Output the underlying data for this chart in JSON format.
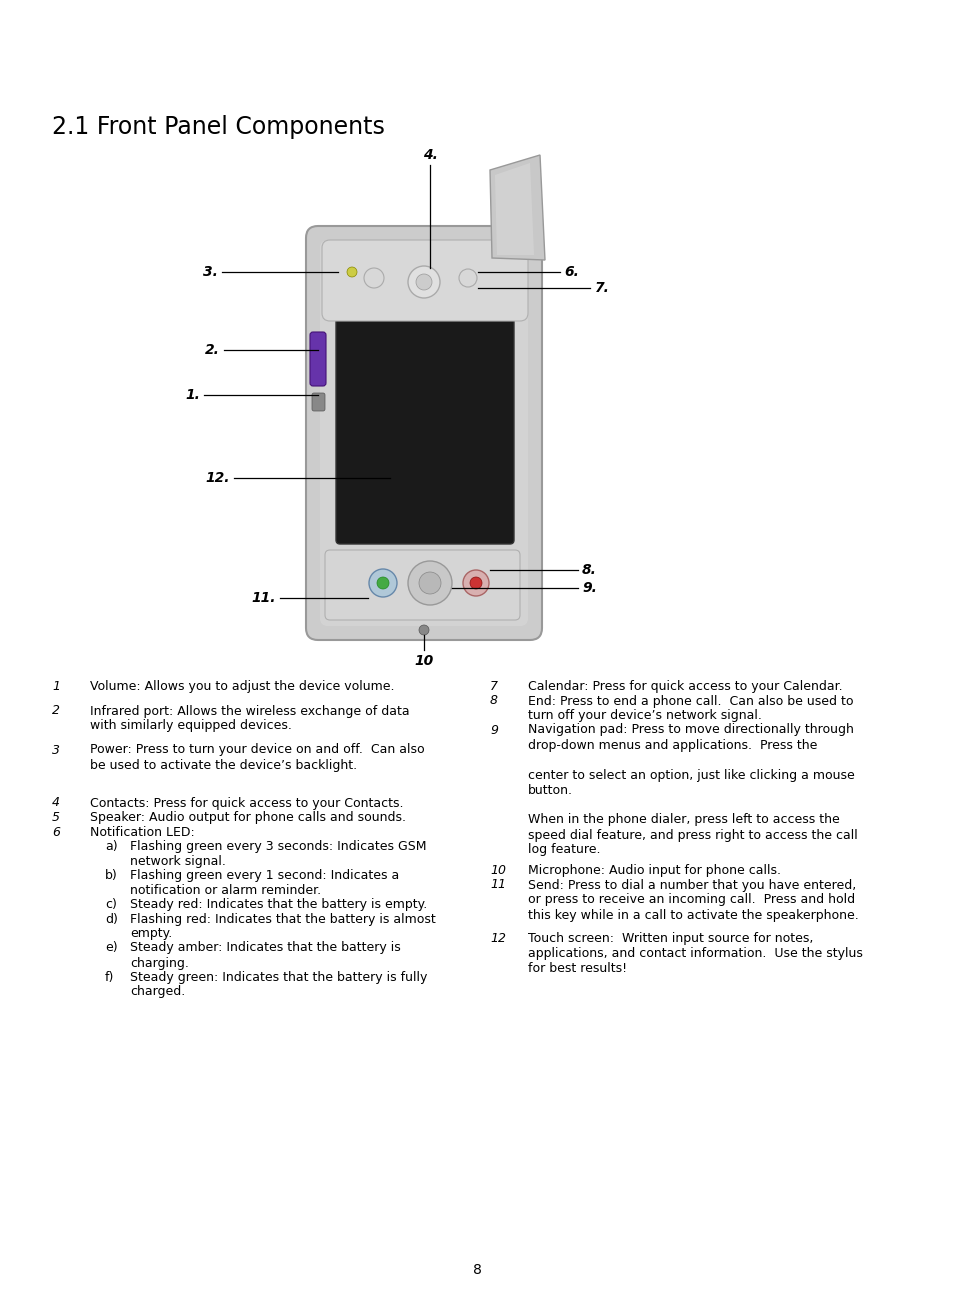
{
  "title": "2.1 Front Panel Components",
  "title_fontsize": 17,
  "bg_color": "#ffffff",
  "page_number": "8",
  "left_col_items": [
    {
      "num": "1",
      "text": "Volume: Allows you to adjust the device volume.",
      "italic_num": true,
      "extra_after": true
    },
    {
      "num": "2",
      "text": "Infrared port: Allows the wireless exchange of data\nwith similarly equipped devices.",
      "italic_num": true,
      "extra_after": true
    },
    {
      "num": "3",
      "text": "Power: Press to turn your device on and off.  Can also\nbe used to activate the device’s backlight.",
      "italic_num": true,
      "extra_after": true
    },
    {
      "num": "4",
      "text": "Contacts: Press for quick access to your Contacts.",
      "italic_num": true,
      "extra_after": false
    },
    {
      "num": "5",
      "text": "Speaker: Audio output for phone calls and sounds.",
      "italic_num": true,
      "extra_after": false
    },
    {
      "num": "6",
      "text": "Notification LED:",
      "italic_num": true,
      "extra_after": false
    },
    {
      "num": "a)",
      "text": "Flashing green every 3 seconds: Indicates GSM\nnetwork signal.",
      "italic_num": false,
      "sub": true,
      "extra_after": false
    },
    {
      "num": "b)",
      "text": "Flashing green every 1 second: Indicates a\nnotification or alarm reminder.",
      "italic_num": false,
      "sub": true,
      "extra_after": false
    },
    {
      "num": "c)",
      "text": "Steady red: Indicates that the battery is empty.",
      "italic_num": false,
      "sub": true,
      "extra_after": false
    },
    {
      "num": "d)",
      "text": "Flashing red: Indicates that the battery is almost\nempty.",
      "italic_num": false,
      "sub": true,
      "extra_after": false
    },
    {
      "num": "e)",
      "text": "Steady amber: Indicates that the battery is\ncharging.",
      "italic_num": false,
      "sub": true,
      "extra_after": false
    },
    {
      "num": "f)",
      "text": "Steady green: Indicates that the battery is fully\ncharged.",
      "italic_num": false,
      "sub": true,
      "extra_after": false
    }
  ],
  "right_col_items": [
    {
      "num": "7",
      "text": "Calendar: Press for quick access to your Calendar.",
      "italic_num": true,
      "extra_after": false
    },
    {
      "num": "8",
      "text": "End: Press to end a phone call.  Can also be used to\nturn off your device’s network signal.",
      "italic_num": true,
      "extra_after": false
    },
    {
      "num": "9",
      "text": "Navigation pad: Press to move directionally through\ndrop-down menus and applications.  Press the\n\ncenter to select an option, just like clicking a mouse\nbutton.\n\nWhen in the phone dialer, press left to access the\nspeed dial feature, and press right to access the call\nlog feature.",
      "italic_num": true,
      "extra_after": true
    },
    {
      "num": "10",
      "text": "Microphone: Audio input for phone calls.",
      "italic_num": true,
      "extra_after": false
    },
    {
      "num": "11",
      "text": "Send: Press to dial a number that you have entered,\nor press to receive an incoming call.  Press and hold\nthis key while in a call to activate the speakerphone.",
      "italic_num": true,
      "extra_after": true
    },
    {
      "num": "12",
      "text": "Touch screen:  Written input source for notes,\napplications, and contact information.  Use the stylus\nfor best results!",
      "italic_num": true,
      "extra_after": false
    }
  ]
}
